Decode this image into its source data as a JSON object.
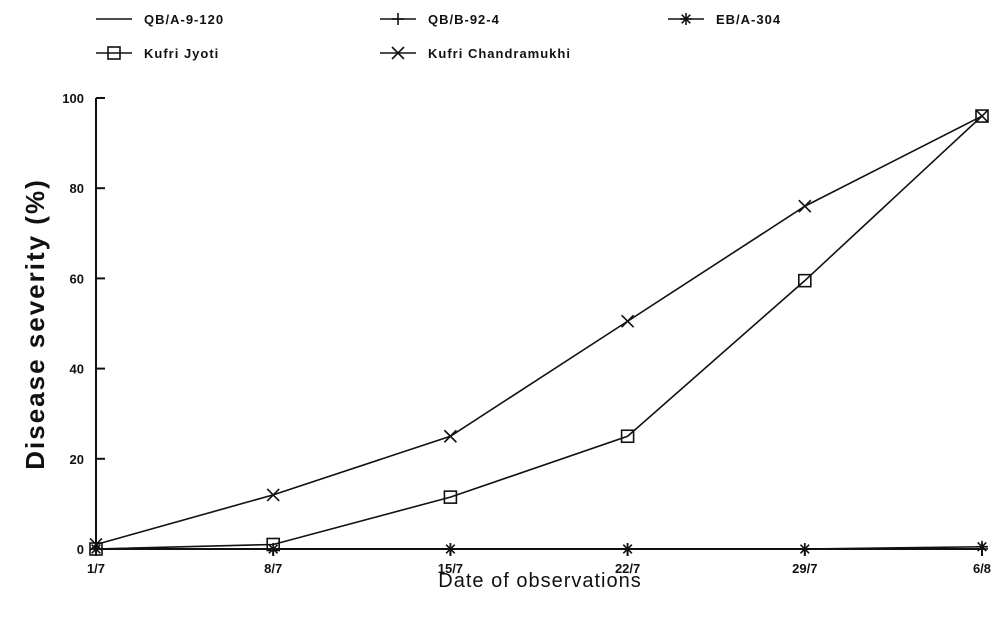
{
  "chart_data": {
    "type": "line",
    "title": "",
    "xlabel": "Date of observations",
    "ylabel": "Disease severity (%)",
    "categories": [
      "1/7",
      "8/7",
      "15/7",
      "22/7",
      "29/7",
      "6/8"
    ],
    "ylim": [
      0,
      100
    ],
    "yticks": [
      0,
      20,
      40,
      60,
      80,
      100
    ],
    "grid": false,
    "legend_position": "top",
    "series": [
      {
        "name": "QB/A-9-120",
        "marker": "none",
        "values": [
          0,
          0,
          0,
          0,
          0,
          0
        ]
      },
      {
        "name": "QB/B-92-4",
        "marker": "plus",
        "values": [
          0,
          0,
          0,
          0,
          0,
          0
        ]
      },
      {
        "name": "EB/A-304",
        "marker": "asterisk",
        "values": [
          0,
          0,
          0,
          0,
          0,
          0.5
        ]
      },
      {
        "name": "Kufri Jyoti",
        "marker": "square",
        "values": [
          0,
          1,
          11.5,
          25,
          59.5,
          96
        ]
      },
      {
        "name": "Kufri Chandramukhi",
        "marker": "x",
        "values": [
          1,
          12,
          25,
          50.5,
          76,
          96
        ]
      }
    ]
  }
}
